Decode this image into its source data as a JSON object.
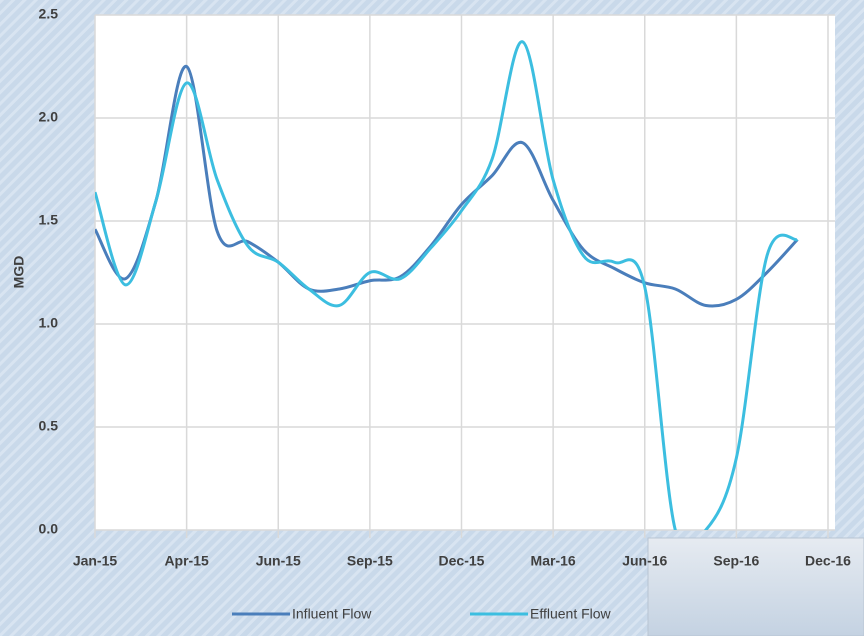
{
  "chart_data": {
    "type": "line",
    "y_label": "MGD",
    "x": [
      0,
      1,
      2,
      3,
      4,
      5,
      6,
      7,
      8,
      9,
      10,
      11,
      12,
      13,
      14,
      15,
      16,
      17,
      18,
      19,
      20,
      21,
      22,
      23
    ],
    "series": [
      {
        "name": "Influent Flow",
        "color": "#4a7ebb",
        "values": [
          1.46,
          1.22,
          1.6,
          2.25,
          1.45,
          1.4,
          1.3,
          1.17,
          1.17,
          1.21,
          1.23,
          1.38,
          1.58,
          1.72,
          1.88,
          1.6,
          1.36,
          1.27,
          1.2,
          1.17,
          1.09,
          1.12,
          1.25,
          1.41
        ]
      },
      {
        "name": "Effluent Flow",
        "color": "#3cbee0",
        "values": [
          1.64,
          1.19,
          1.6,
          2.17,
          1.7,
          1.38,
          1.3,
          1.17,
          1.09,
          1.25,
          1.22,
          1.37,
          1.55,
          1.8,
          2.37,
          1.7,
          1.33,
          1.3,
          1.18,
          0.0,
          0.0,
          0.35,
          1.33,
          1.41
        ]
      }
    ],
    "xlim": [
      0,
      24
    ],
    "xticks": [
      {
        "value": 0,
        "label": "Jan-15"
      },
      {
        "value": 3,
        "label": "Apr-15"
      },
      {
        "value": 6,
        "label": "Jun-15"
      },
      {
        "value": 9,
        "label": "Sep-15"
      },
      {
        "value": 12,
        "label": "Dec-15"
      },
      {
        "value": 15,
        "label": "Mar-16"
      },
      {
        "value": 18,
        "label": "Jun-16"
      },
      {
        "value": 21,
        "label": "Sep-16"
      },
      {
        "value": 24,
        "label": "Dec-16"
      }
    ],
    "ylim": [
      0,
      2.5
    ],
    "yticks": [
      {
        "value": 0,
        "label": "0.0"
      },
      0.5,
      {
        "value": 1,
        "label": "1.0"
      },
      1.5,
      {
        "value": 2,
        "label": "2.0"
      },
      2.5
    ],
    "grid": true,
    "legend": "bottom"
  }
}
